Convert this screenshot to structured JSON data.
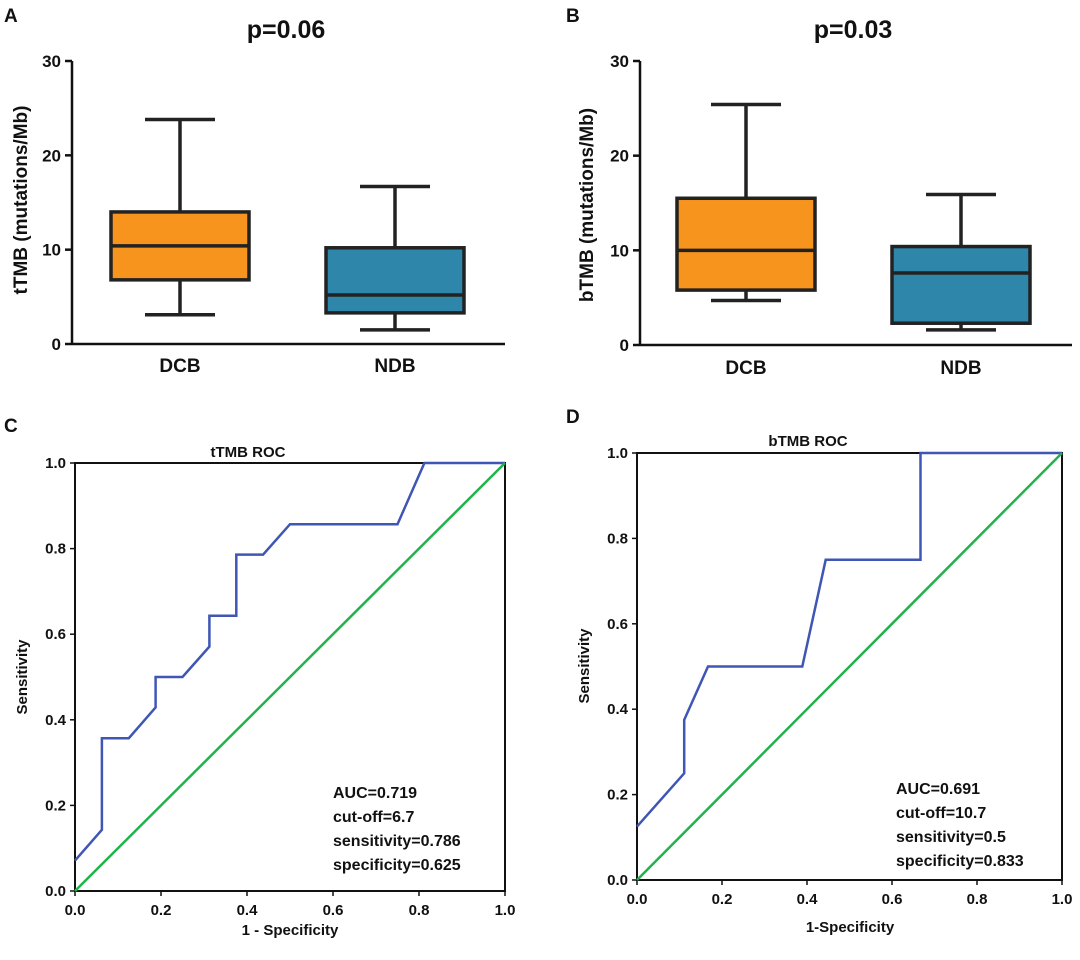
{
  "chart_data": [
    {
      "panel": "A",
      "type": "box",
      "title": "p=0.06",
      "xlabel": "",
      "ylabel": "tTMB (mutations/Mb)",
      "ylim": [
        0,
        30
      ],
      "yticks": [
        0,
        10,
        20,
        30
      ],
      "categories": [
        "DCB",
        "NDB"
      ],
      "boxes": [
        {
          "name": "DCB",
          "color": "#F7941D",
          "min": 3.1,
          "q1": 6.8,
          "median": 10.4,
          "q3": 14.0,
          "max": 23.8
        },
        {
          "name": "NDB",
          "color": "#2E86AB",
          "min": 1.5,
          "q1": 3.3,
          "median": 5.2,
          "q3": 10.2,
          "max": 16.7
        }
      ]
    },
    {
      "panel": "B",
      "type": "box",
      "title": "p=0.03",
      "xlabel": "",
      "ylabel": "bTMB (mutations/Mb)",
      "ylim": [
        0,
        30
      ],
      "yticks": [
        0,
        10,
        20,
        30
      ],
      "categories": [
        "DCB",
        "NDB"
      ],
      "boxes": [
        {
          "name": "DCB",
          "color": "#F7941D",
          "min": 4.7,
          "q1": 5.8,
          "median": 10.0,
          "q3": 15.5,
          "max": 25.4
        },
        {
          "name": "NDB",
          "color": "#2E86AB",
          "min": 1.6,
          "q1": 2.3,
          "median": 7.6,
          "q3": 10.4,
          "max": 15.9
        }
      ]
    },
    {
      "panel": "C",
      "type": "line",
      "title": "tTMB ROC",
      "xlabel": "1 - Specificity",
      "ylabel": "Sensitivity",
      "xlim": [
        0,
        1
      ],
      "ylim": [
        0,
        1
      ],
      "ticks": [
        0.0,
        0.2,
        0.4,
        0.6,
        0.8,
        1.0
      ],
      "tick_labels": [
        "0.0",
        "0.2",
        "0.4",
        "0.6",
        "0.8",
        "1.0"
      ],
      "series": [
        {
          "name": "ROC",
          "color": "#3F56B5",
          "points": [
            [
              0,
              0.071
            ],
            [
              0.0625,
              0.143
            ],
            [
              0.0625,
              0.357
            ],
            [
              0.125,
              0.357
            ],
            [
              0.1875,
              0.429
            ],
            [
              0.1875,
              0.5
            ],
            [
              0.25,
              0.5
            ],
            [
              0.3125,
              0.571
            ],
            [
              0.3125,
              0.643
            ],
            [
              0.375,
              0.643
            ],
            [
              0.375,
              0.786
            ],
            [
              0.4375,
              0.786
            ],
            [
              0.5,
              0.857
            ],
            [
              0.75,
              0.857
            ],
            [
              0.8125,
              1.0
            ],
            [
              1.0,
              1.0
            ]
          ]
        },
        {
          "name": "Reference",
          "color": "#22B24C",
          "points": [
            [
              0,
              0
            ],
            [
              1,
              1
            ]
          ]
        }
      ],
      "stats": [
        "AUC=0.719",
        "cut-off=6.7",
        "sensitivity=0.786",
        "specificity=0.625"
      ]
    },
    {
      "panel": "D",
      "type": "line",
      "title": "bTMB ROC",
      "xlabel": "1-Specificity",
      "ylabel": "Sensitivity",
      "xlim": [
        0,
        1
      ],
      "ylim": [
        0,
        1
      ],
      "ticks": [
        0.0,
        0.2,
        0.4,
        0.6,
        0.8,
        1.0
      ],
      "tick_labels": [
        "0.0",
        "0.2",
        "0.4",
        "0.6",
        "0.8",
        "1.0"
      ],
      "series": [
        {
          "name": "ROC",
          "color": "#3F56B5",
          "points": [
            [
              0,
              0.125
            ],
            [
              0.111,
              0.25
            ],
            [
              0.111,
              0.375
            ],
            [
              0.167,
              0.5
            ],
            [
              0.389,
              0.5
            ],
            [
              0.444,
              0.75
            ],
            [
              0.667,
              0.75
            ],
            [
              0.667,
              1.0
            ],
            [
              1.0,
              1.0
            ]
          ]
        },
        {
          "name": "Reference",
          "color": "#22B24C",
          "points": [
            [
              0,
              0
            ],
            [
              1,
              1
            ]
          ]
        }
      ],
      "stats": [
        "AUC=0.691",
        "cut-off=10.7",
        "sensitivity=0.5",
        "specificity=0.833"
      ]
    }
  ]
}
